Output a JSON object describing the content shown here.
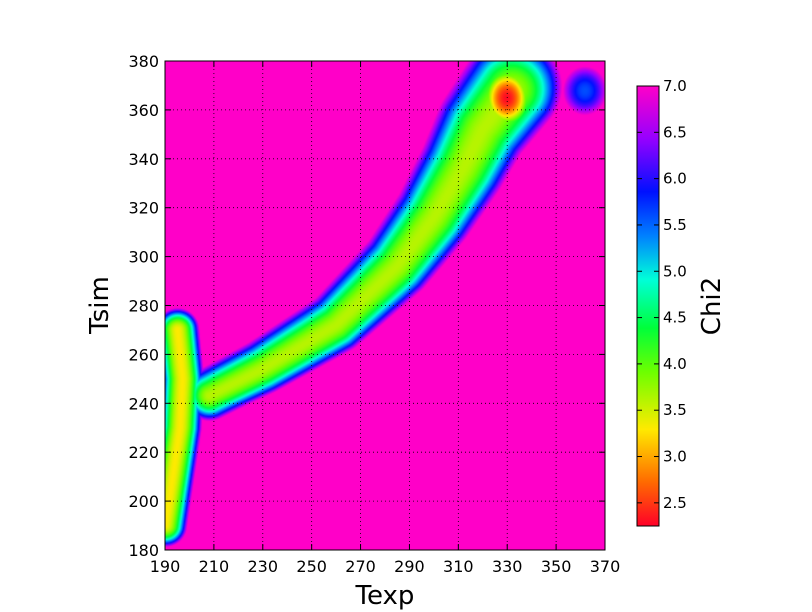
{
  "chart_data": {
    "type": "heatmap",
    "xlabel": "Texp",
    "ylabel": "Tsim",
    "xlim": [
      190,
      370
    ],
    "ylim": [
      180,
      380
    ],
    "xticks": [
      "190",
      "210",
      "230",
      "250",
      "270",
      "290",
      "310",
      "330",
      "350",
      "370"
    ],
    "yticks": [
      "180",
      "200",
      "220",
      "240",
      "260",
      "280",
      "300",
      "320",
      "340",
      "360",
      "380"
    ],
    "grid": true,
    "colorbar": {
      "label": "Chi2",
      "range": [
        2.25,
        7.0
      ],
      "ticks": [
        "2.5",
        "3.0",
        "3.5",
        "4.0",
        "4.5",
        "5.0",
        "5.5",
        "6.0",
        "6.5",
        "7.0"
      ],
      "colormap": "gist_rainbow (reversed)"
    },
    "background_value": 7.0,
    "features": [
      {
        "name": "diagonal valley",
        "path": [
          [
            208,
            243
          ],
          [
            230,
            254
          ],
          [
            260,
            272
          ],
          [
            285,
            296
          ],
          [
            300,
            316
          ],
          [
            312,
            336
          ],
          [
            320,
            352
          ],
          [
            332,
            368
          ]
        ],
        "min_chi2": 3.6
      },
      {
        "name": "low-Texp valley",
        "path": [
          [
            190,
            190
          ],
          [
            193,
            210
          ],
          [
            196,
            230
          ],
          [
            197,
            250
          ],
          [
            195,
            270
          ]
        ],
        "min_chi2": 3.3
      },
      {
        "name": "top minimum",
        "center": [
          330,
          365
        ],
        "min_chi2": 2.3
      }
    ]
  }
}
